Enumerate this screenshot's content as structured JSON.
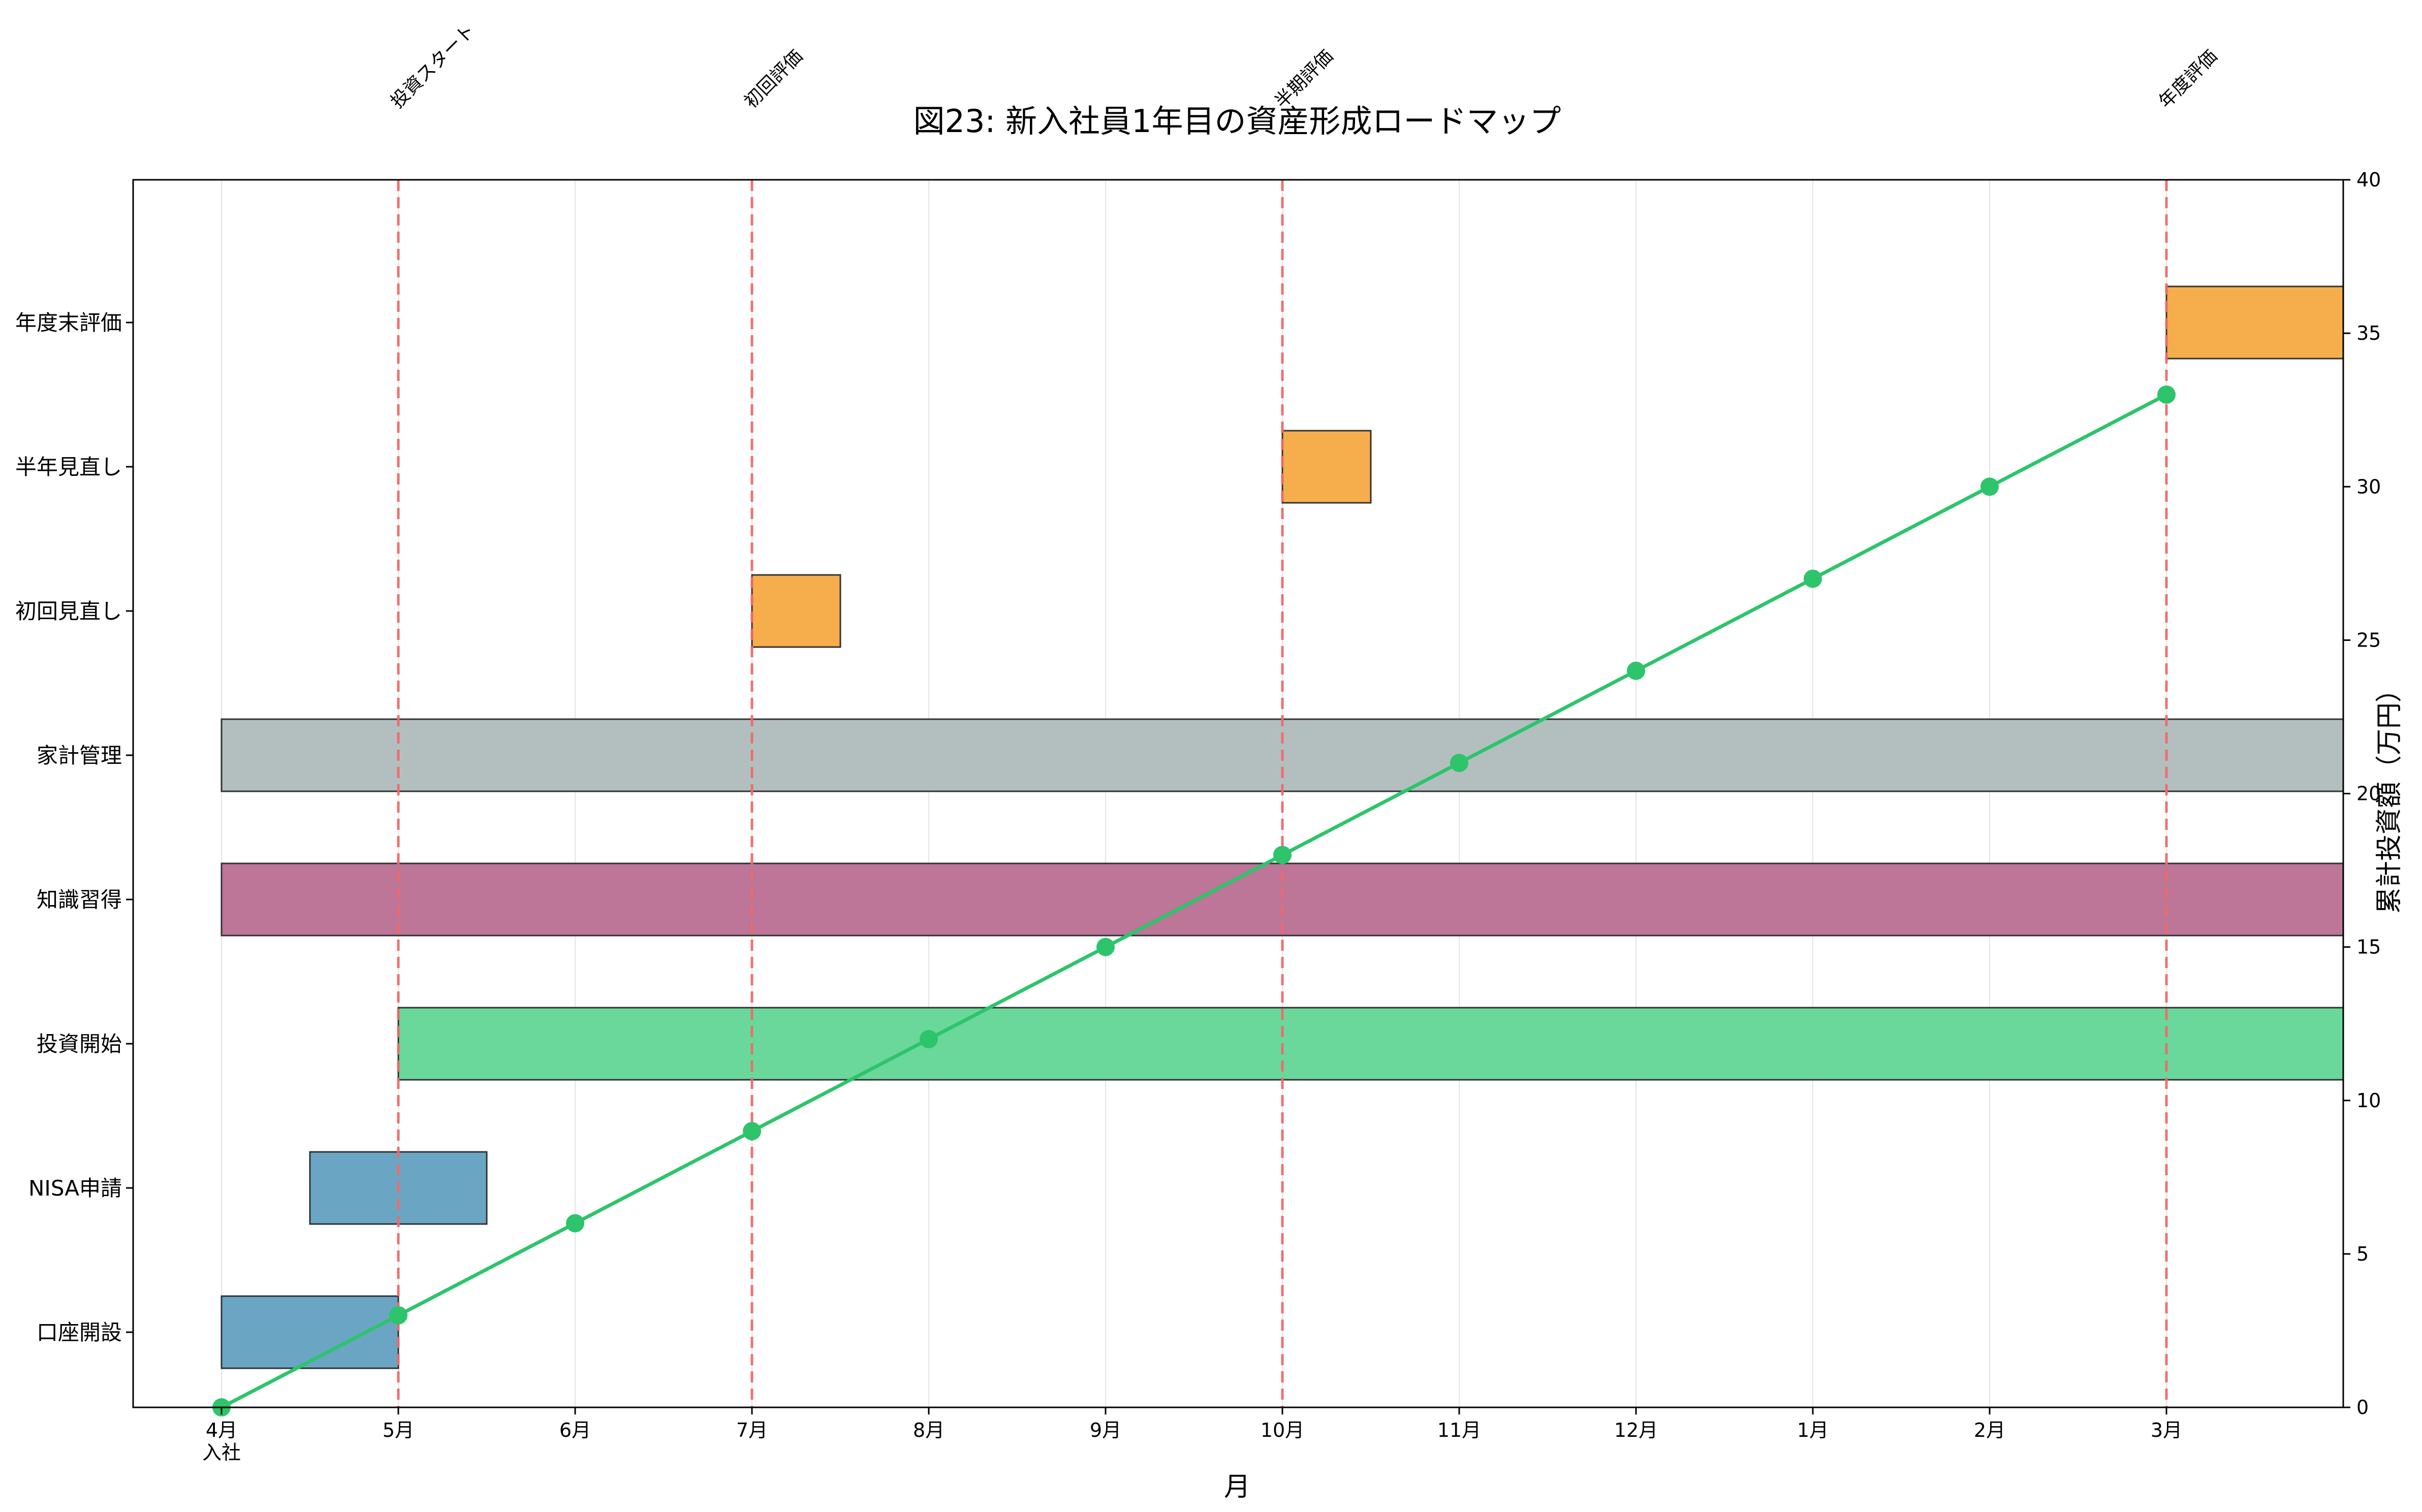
{
  "chart_data": {
    "type": "gantt",
    "title": "図23: 新入社員1年目の資産形成ロードマップ",
    "xlabel": "月",
    "ylabel_right": "累計投資額（万円）",
    "x_ticks": [
      "4月",
      "5月",
      "6月",
      "7月",
      "8月",
      "9月",
      "10月",
      "11月",
      "12月",
      "1月",
      "2月",
      "3月"
    ],
    "x_tick_sublabel": "入社",
    "x_range": [
      -0.5,
      12.0
    ],
    "y_right_range": [
      0,
      40
    ],
    "y_right_ticks": [
      0,
      5,
      10,
      15,
      20,
      25,
      30,
      35,
      40
    ],
    "grid": "vertical",
    "tasks": [
      {
        "label": "口座開設",
        "start": 0,
        "end": 1,
        "color": "#6AA6C4"
      },
      {
        "label": "NISA申請",
        "start": 0.5,
        "end": 1.5,
        "color": "#6AA6C4"
      },
      {
        "label": "投資開始",
        "start": 1,
        "end": 12,
        "color": "#6AD89A"
      },
      {
        "label": "知識習得",
        "start": 0,
        "end": 12,
        "color": "#BD7598"
      },
      {
        "label": "家計管理",
        "start": 0,
        "end": 12,
        "color": "#B3BFBF"
      },
      {
        "label": "初回見直し",
        "start": 3,
        "end": 3.5,
        "color": "#F5AE4B"
      },
      {
        "label": "半年見直し",
        "start": 6,
        "end": 6.5,
        "color": "#F5AE4B"
      },
      {
        "label": "年度末評価",
        "start": 11,
        "end": 12,
        "color": "#F5AE4B"
      }
    ],
    "cumulative_series": {
      "x": [
        0,
        1,
        2,
        3,
        4,
        5,
        6,
        7,
        8,
        9,
        10,
        11
      ],
      "values": [
        0,
        3,
        6,
        9,
        12,
        15,
        18,
        21,
        24,
        27,
        30,
        33
      ],
      "color": "#2DC46B"
    },
    "milestones": [
      {
        "x": 1,
        "label": "投資スタート"
      },
      {
        "x": 3,
        "label": "初回評価"
      },
      {
        "x": 6,
        "label": "半期評価"
      },
      {
        "x": 11,
        "label": "年度評価"
      }
    ],
    "milestone_color": "#F06A6A"
  }
}
